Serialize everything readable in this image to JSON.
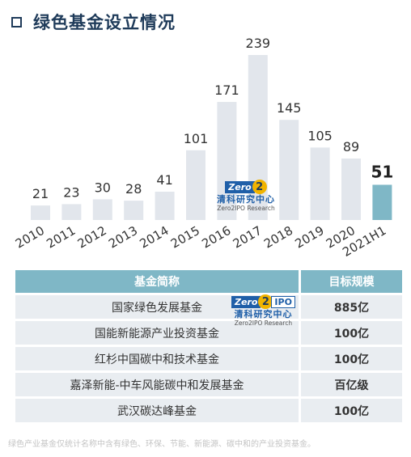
{
  "title": "绿色基金设立情况",
  "chart_data": {
    "type": "bar",
    "categories": [
      "2010",
      "2011",
      "2012",
      "2013",
      "2014",
      "2015",
      "2016",
      "2017",
      "2018",
      "2019",
      "2020",
      "2021H1"
    ],
    "values": [
      21,
      23,
      30,
      28,
      41,
      101,
      171,
      239,
      145,
      105,
      89,
      51
    ],
    "colors": {
      "bar": "#e2e6ec",
      "highlight": "#7fb7c6",
      "label": "#333333",
      "highlight_label": "#222222"
    },
    "highlight_index": 11
  },
  "watermark": {
    "logo_zero": "Zero",
    "logo_two": "2",
    "logo_ipo": "IPO",
    "cn": "清科研究中心",
    "en": "Zero2IPO Research"
  },
  "table": {
    "headers": [
      "基金简称",
      "目标规模"
    ],
    "rows": [
      [
        "国家绿色发展基金",
        "885亿"
      ],
      [
        "国能新能源产业投资基金",
        "100亿"
      ],
      [
        "红杉中国碳中和技术基金",
        "100亿"
      ],
      [
        "嘉泽新能-中车风能碳中和发展基金",
        "百亿级"
      ],
      [
        "武汉碳达峰基金",
        "100亿"
      ]
    ]
  },
  "note": "绿色产业基金仅统计名称中含有绿色、环保、节能、新能源、碳中和的产业投资基金。"
}
